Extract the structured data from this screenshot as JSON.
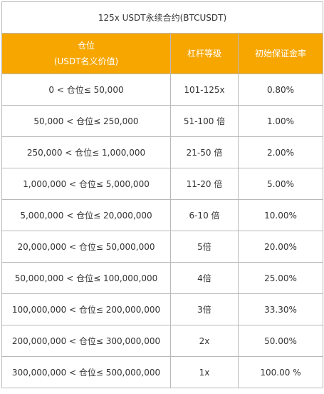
{
  "title": "125x USDT永续合约(BTCUSDT)",
  "headers": {
    "position": "仓位",
    "position_sub": "(USDT名义价值)",
    "leverage": "杠杆等级",
    "margin_rate": "初始保证金率"
  },
  "rows": [
    {
      "position": "0 < 仓位≤ 50,000",
      "leverage": "101-125x",
      "margin": "0.80%"
    },
    {
      "position": "50,000 < 仓位≤ 250,000",
      "leverage": "51-100 倍",
      "margin": "1.00%"
    },
    {
      "position": "250,000 < 仓位≤ 1,000,000",
      "leverage": "21-50 倍",
      "margin": "2.00%"
    },
    {
      "position": "1,000,000 < 仓位≤ 5,000,000",
      "leverage": "11-20 倍",
      "margin": "5.00%"
    },
    {
      "position": "5,000,000 < 仓位≤ 20,000,000",
      "leverage": "6-10 倍",
      "margin": "10.00%"
    },
    {
      "position": "20,000,000 < 仓位≤ 50,000,000",
      "leverage": "5倍",
      "margin": "20.00%"
    },
    {
      "position": "50,000,000 < 仓位≤ 100,000,000",
      "leverage": "4倍",
      "margin": "25.00%"
    },
    {
      "position": "100,000,000 < 仓位≤ 200,000,000",
      "leverage": "3倍",
      "margin": "33.30%"
    },
    {
      "position": "200,000,000 < 仓位≤ 300,000,000",
      "leverage": "2x",
      "margin": "50.00%"
    },
    {
      "position": "300,000,000 < 仓位≤ 500,000,000",
      "leverage": "1x",
      "margin": "100.00 %"
    }
  ],
  "colors": {
    "header_bg": "#f7a600",
    "header_text": "#ffffff",
    "border": "#b9b9b9",
    "text": "#333333"
  }
}
